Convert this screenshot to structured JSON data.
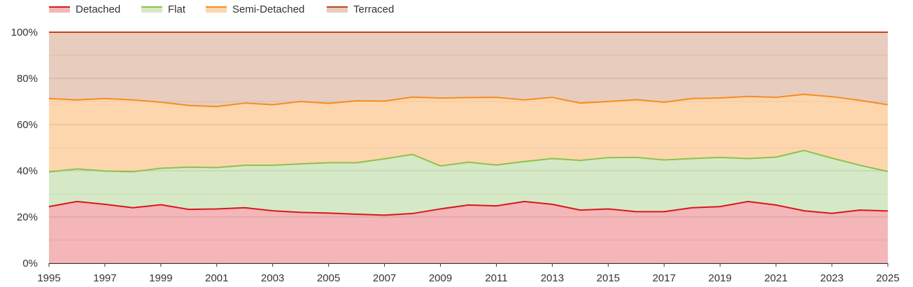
{
  "chart_data": {
    "type": "area",
    "stacked": "percent",
    "title": "",
    "xlabel": "",
    "ylabel": "",
    "ylim": [
      0,
      100
    ],
    "xlim": [
      1995,
      2025
    ],
    "grid": true,
    "legend_position": "top-left",
    "x": [
      1995,
      1996,
      1997,
      1998,
      1999,
      2000,
      2001,
      2002,
      2003,
      2004,
      2005,
      2006,
      2007,
      2008,
      2009,
      2010,
      2011,
      2012,
      2013,
      2014,
      2015,
      2016,
      2017,
      2018,
      2019,
      2020,
      2021,
      2022,
      2023,
      2024,
      2025
    ],
    "x_ticks": [
      "1995",
      "1997",
      "1999",
      "2001",
      "2003",
      "2005",
      "2007",
      "2009",
      "2011",
      "2013",
      "2015",
      "2017",
      "2019",
      "2021",
      "2023",
      "2025"
    ],
    "y_ticks": [
      "0%",
      "20%",
      "40%",
      "60%",
      "80%",
      "100%"
    ],
    "series": [
      {
        "name": "Detached",
        "line_color": "#d7191c",
        "fill_color": "#f4b6b8",
        "values": [
          24.5,
          26.7,
          25.5,
          24.0,
          25.3,
          23.3,
          23.5,
          24.0,
          22.7,
          22.0,
          21.7,
          21.2,
          20.8,
          21.5,
          23.5,
          25.2,
          24.8,
          26.7,
          25.5,
          23.0,
          23.5,
          22.3,
          22.3,
          24.0,
          24.5,
          26.7,
          25.2,
          22.7,
          21.6,
          23.0,
          22.6
        ]
      },
      {
        "name": "Flat",
        "line_color": "#8bc34a",
        "fill_color": "#d6e9c6",
        "values": [
          15.0,
          14.1,
          14.4,
          15.6,
          15.8,
          18.3,
          17.9,
          18.4,
          19.7,
          21.0,
          21.8,
          22.3,
          24.4,
          25.6,
          18.6,
          18.5,
          17.7,
          17.3,
          19.8,
          21.5,
          22.2,
          23.5,
          22.4,
          21.3,
          21.3,
          18.6,
          20.7,
          26.1,
          23.9,
          19.4,
          17.1
        ]
      },
      {
        "name": "Semi-Detached",
        "line_color": "#f68d1e",
        "fill_color": "#fdd6ae",
        "values": [
          31.8,
          29.9,
          31.4,
          31.1,
          28.6,
          26.7,
          26.4,
          26.9,
          26.2,
          27.0,
          25.7,
          26.8,
          25.0,
          24.8,
          29.4,
          28.0,
          29.3,
          26.7,
          26.5,
          24.8,
          24.3,
          25.0,
          25.0,
          26.0,
          25.7,
          26.9,
          25.9,
          24.3,
          26.6,
          28.1,
          28.9
        ]
      },
      {
        "name": "Terraced",
        "line_color": "#c1441c",
        "fill_color": "#e8ccbe",
        "values": [
          28.7,
          29.3,
          28.7,
          29.3,
          30.3,
          31.7,
          32.2,
          30.7,
          31.4,
          30.0,
          30.8,
          29.7,
          29.8,
          28.1,
          28.5,
          28.3,
          28.2,
          29.3,
          28.2,
          30.7,
          30.0,
          29.2,
          30.3,
          28.7,
          28.5,
          27.8,
          28.2,
          26.9,
          27.9,
          29.5,
          31.4
        ]
      }
    ]
  }
}
